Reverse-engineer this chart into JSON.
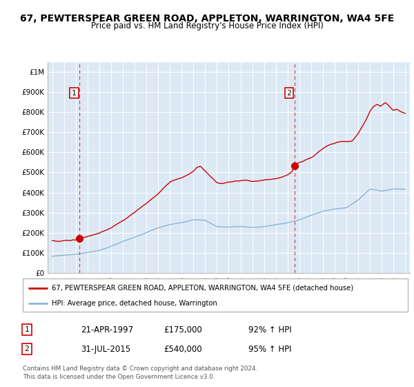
{
  "title": "67, PEWTERSPEAR GREEN ROAD, APPLETON, WARRINGTON, WA4 5FE",
  "subtitle": "Price paid vs. HM Land Registry's House Price Index (HPI)",
  "title_fontsize": 10,
  "subtitle_fontsize": 8.5,
  "background_color": "#ffffff",
  "plot_bg_color": "#dce9f5",
  "grid_color": "#ffffff",
  "red_line_color": "#cc0000",
  "blue_line_color": "#8ab4d4",
  "purchase1_date": 1997.31,
  "purchase2_date": 2015.58,
  "purchase1_label": "1",
  "purchase2_label": "2",
  "vline_color": "#dd4444",
  "marker_color": "#cc0000",
  "ylim": [
    0,
    1050000
  ],
  "xlim": [
    1994.6,
    2025.4
  ],
  "yticks": [
    0,
    100000,
    200000,
    300000,
    400000,
    500000,
    600000,
    700000,
    800000,
    900000,
    1000000
  ],
  "ytick_labels": [
    "£0",
    "£100K",
    "£200K",
    "£300K",
    "£400K",
    "£500K",
    "£600K",
    "£700K",
    "£800K",
    "£900K",
    "£1M"
  ],
  "xticks": [
    1995,
    1996,
    1997,
    1998,
    1999,
    2000,
    2001,
    2002,
    2003,
    2004,
    2005,
    2006,
    2007,
    2008,
    2009,
    2010,
    2011,
    2012,
    2013,
    2014,
    2015,
    2016,
    2017,
    2018,
    2019,
    2020,
    2021,
    2022,
    2023,
    2024,
    2025
  ],
  "legend_line1": "67, PEWTERSPEAR GREEN ROAD, APPLETON, WARRINGTON, WA4 5FE (detached house)",
  "legend_line2": "HPI: Average price, detached house, Warrington",
  "purchase1_text_date": "21-APR-1997",
  "purchase1_text_price": "£175,000",
  "purchase1_text_hpi": "92% ↑ HPI",
  "purchase2_text_date": "31-JUL-2015",
  "purchase2_text_price": "£540,000",
  "purchase2_text_hpi": "95% ↑ HPI",
  "footer1": "Contains HM Land Registry data © Crown copyright and database right 2024.",
  "footer2": "This data is licensed under the Open Government Licence v3.0."
}
